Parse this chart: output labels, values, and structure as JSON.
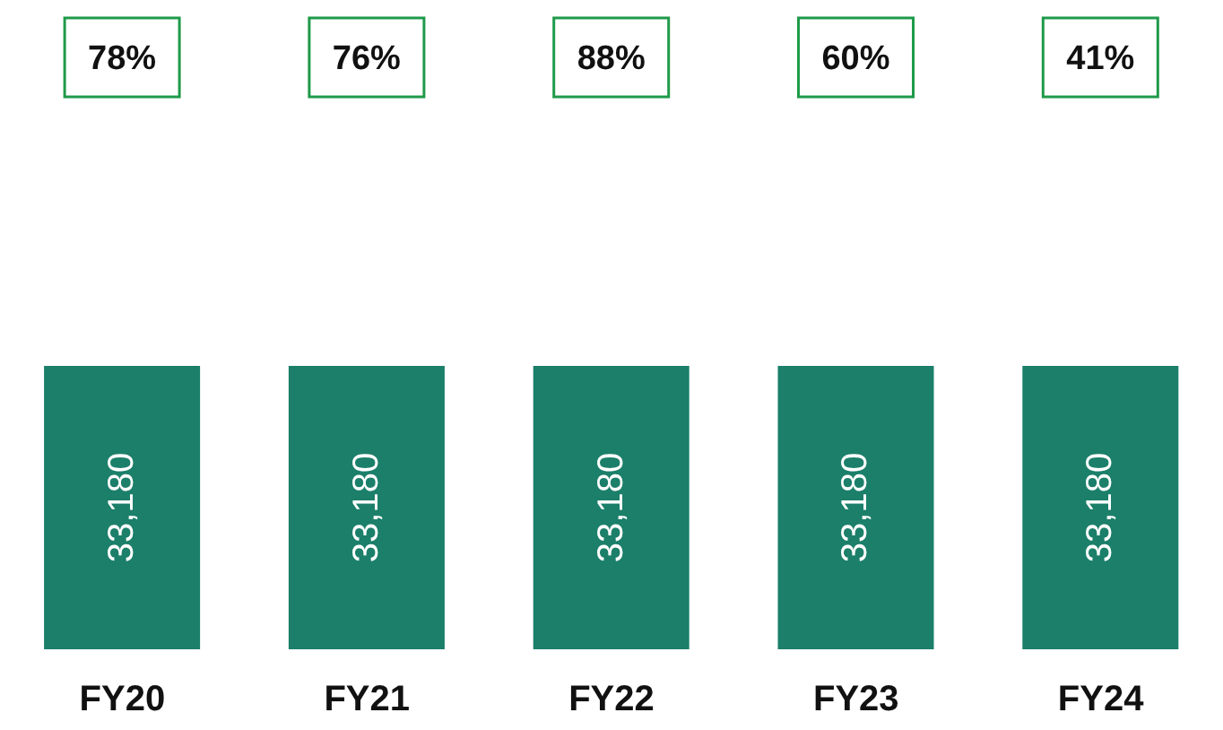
{
  "chart_data": {
    "type": "bar",
    "categories": [
      "FY20",
      "FY21",
      "FY22",
      "FY23",
      "FY24"
    ],
    "values": [
      33180,
      33180,
      33180,
      33180,
      33180
    ],
    "color": "#1b7f6a",
    "ylim": [
      0,
      76000
    ],
    "value_labels": [
      "33,180",
      "33,180",
      "33,180",
      "33,180",
      "33,180"
    ],
    "annotations": [
      "78%",
      "76%",
      "88%",
      "60%",
      "41%"
    ]
  }
}
